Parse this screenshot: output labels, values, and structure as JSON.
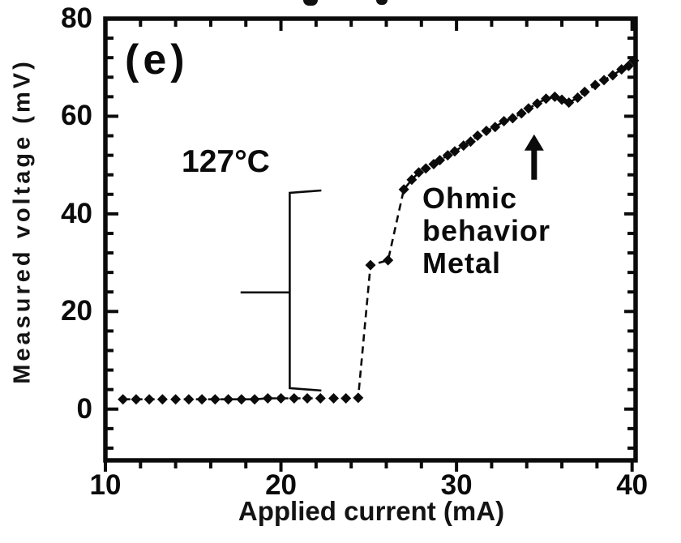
{
  "figure": {
    "background": "#ffffff",
    "ink_color": "#0b0b0b"
  },
  "chart_data": {
    "type": "scatter",
    "title": "",
    "xlabel": "Applied current (mA)",
    "ylabel": "Measured voltage (mV)",
    "xlim": [
      10,
      40.2
    ],
    "ylim": [
      -10.5,
      80
    ],
    "x_major_ticks": [
      10,
      20,
      30,
      40
    ],
    "y_major_ticks": [
      0,
      20,
      40,
      60,
      80
    ],
    "x_minor_step": 2,
    "y_minor_step": 4,
    "grid": false,
    "legend": "none",
    "marker": "filled-diamond",
    "line": "dashed",
    "series": [
      {
        "name": "measured voltage vs applied current at 127C",
        "points": [
          [
            11.0,
            2.0
          ],
          [
            11.75,
            2.0
          ],
          [
            12.5,
            2.0
          ],
          [
            13.25,
            2.0
          ],
          [
            14.0,
            2.0
          ],
          [
            14.75,
            2.0
          ],
          [
            15.5,
            2.0
          ],
          [
            16.25,
            2.0
          ],
          [
            17.0,
            2.0
          ],
          [
            17.75,
            2.0
          ],
          [
            18.5,
            2.0
          ],
          [
            19.25,
            2.2
          ],
          [
            20.0,
            2.2
          ],
          [
            20.75,
            2.2
          ],
          [
            21.5,
            2.2
          ],
          [
            22.25,
            2.2
          ],
          [
            23.0,
            2.2
          ],
          [
            23.7,
            2.2
          ],
          [
            24.4,
            2.3
          ],
          [
            25.1,
            29.5
          ],
          [
            26.1,
            30.5
          ],
          [
            27.0,
            45.0
          ],
          [
            27.45,
            47.0
          ],
          [
            27.85,
            48.5
          ],
          [
            28.25,
            49.3
          ],
          [
            28.7,
            50.2
          ],
          [
            29.05,
            51.0
          ],
          [
            29.5,
            52.0
          ],
          [
            29.9,
            52.8
          ],
          [
            30.4,
            54.0
          ],
          [
            30.8,
            54.8
          ],
          [
            31.2,
            56.0
          ],
          [
            31.7,
            57.0
          ],
          [
            32.2,
            57.8
          ],
          [
            32.7,
            59.0
          ],
          [
            33.2,
            59.6
          ],
          [
            33.7,
            60.6
          ],
          [
            34.1,
            61.6
          ],
          [
            34.6,
            62.6
          ],
          [
            35.1,
            63.6
          ],
          [
            35.6,
            64.0
          ],
          [
            36.0,
            63.4
          ],
          [
            36.4,
            62.8
          ],
          [
            36.9,
            63.8
          ],
          [
            37.3,
            65.0
          ],
          [
            37.9,
            66.4
          ],
          [
            38.4,
            67.4
          ],
          [
            38.9,
            68.4
          ],
          [
            39.4,
            69.6
          ],
          [
            39.8,
            70.3
          ],
          [
            40.1,
            71.4
          ]
        ]
      }
    ],
    "annotations": {
      "panel_label": "(e)",
      "temperature": "127°C",
      "ohmic_lines": [
        "Ohmic",
        "behavior",
        "Metal"
      ],
      "arrow": {
        "x": 34.42,
        "y_tail": 47.0,
        "y_tip": 56.3
      },
      "bracket": {
        "x": 20.5,
        "y_top": 44.3,
        "y_bottom": 4.3,
        "arm_right_x": 22.3,
        "arm_left_x": 17.7,
        "y_mid": 23.9
      }
    }
  }
}
